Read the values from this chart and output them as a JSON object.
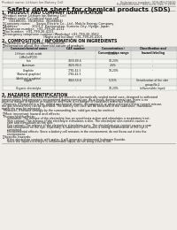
{
  "bg_color": "#f0ede8",
  "header_left": "Product name: Lithium Ion Battery Cell",
  "header_right_l1": "Substance number: SDS-MH-00010",
  "header_right_l2": "Establishment / Revision: Dec.7,2015",
  "title": "Safety data sheet for chemical products (SDS)",
  "s1_title": "1. PRODUCT AND COMPANY IDENTIFICATION",
  "s1_lines": [
    "・Product name: Lithium Ion Battery Cell",
    "・Product code: Cylindrical type cell",
    "      (34188001, 34188002, 34188004)",
    "・Company name:      Sanyo Electric Co., Ltd., Mobile Energy Company",
    "・Address:              2023-1  Kamionakao, Sumoto-City, Hyogo, Japan",
    "・Telephone number:  +81-799-26-4111",
    "・Fax number:  +81-799-26-4121",
    "・Emergency telephone number (Weekday) +81-799-26-3562",
    "                                         (Night and holiday) +81-799-26-4101"
  ],
  "s2_title": "2. COMPOSITION / INFORMATION ON INGREDIENTS",
  "s2_prep": "・Substance or preparation: Preparation",
  "s2_info": "・Information about the chemical nature of product:",
  "th": [
    "Common/chemical name",
    "CAS number",
    "Concentration /\nConcentration range",
    "Classification and\nhazard labeling"
  ],
  "tr": [
    [
      "Lithium cobalt oxide\n(LiMnCo(PCO))",
      "-",
      "30-50%",
      "-"
    ],
    [
      "Iron",
      "7439-89-6",
      "10-20%",
      "-"
    ],
    [
      "Aluminum",
      "7429-90-5",
      "2-6%",
      "-"
    ],
    [
      "Graphite\n(Natural graphite)\n(Artificial graphite)",
      "7782-42-5\n7782-42-5",
      "10-20%",
      "-"
    ],
    [
      "Copper",
      "7440-50-8",
      "5-15%",
      "Sensitization of the skin\ngroup No.2"
    ],
    [
      "Organic electrolyte",
      "-",
      "10-20%",
      "Inflammable liquid"
    ]
  ],
  "s3_title": "3. HAZARDS IDENTIFICATION",
  "s3_body": [
    "For this battery cell, chemical materials are stored in a hermetically sealed metal case, designed to withstand",
    "temperatures and pressures encountered during normal use. As a result, during normal use, there is no",
    "physical danger of ignition or explosion and there is no danger of hazardous materials leakage.",
    "  However, if exposed to a fire, added mechanical shocks, decomposed, or when external electric current misuse,",
    "the gas release vent can be operated. The battery cell case will be breached of the substance. Hazardous",
    "materials may be released.",
    "  Moreover, if heated strongly by the surrounding fire, solid gas may be emitted."
  ],
  "s3_sub1": "・Most important hazard and effects:",
  "s3_sub1_body": [
    "Human health effects:",
    "    Inhalation: The release of the electrolyte has an anesthesia action and stimulates a respiratory tract.",
    "    Skin contact: The release of the electrolyte stimulates a skin. The electrolyte skin contact causes a",
    "    sore and stimulation on the skin.",
    "    Eye contact: The release of the electrolyte stimulates eyes. The electrolyte eye contact causes a sore",
    "    and stimulation on the eye. Especially, a substance that causes a strong inflammation of the eye is",
    "    contained.",
    "    Environmental effects: Since a battery cell remains in the environment, do not throw out it into the",
    "    environment."
  ],
  "s3_sub2": "・Specific hazards:",
  "s3_sub2_body": [
    "    If the electrolyte contacts with water, it will generate detrimental hydrogen fluoride.",
    "    Since the liquid electrolyte is inflammable liquid, do not bring close to fire."
  ],
  "footer_line": true
}
